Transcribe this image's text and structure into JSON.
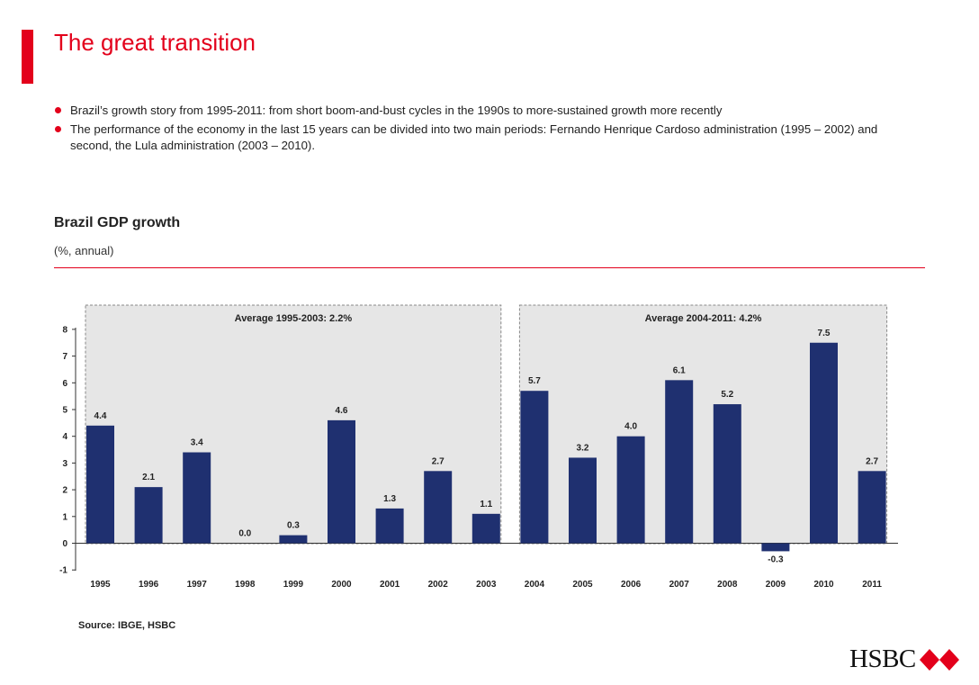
{
  "slide": {
    "title": "The great transition",
    "bullets": [
      "Brazil’s growth story from 1995-2011: from short boom-and-bust cycles in the 1990s to more-sustained growth more recently",
      "The performance of the economy in the last 15 years can be divided into two main periods: Fernando Henrique Cardoso administration (1995 – 2002) and second, the Lula administration (2003 – 2010)."
    ],
    "source": "Source: IBGE, HSBC",
    "logo_text": "HSBC"
  },
  "colors": {
    "accent": "#e3001b",
    "bar": "#1f3070",
    "panel": "#e6e6e6",
    "panel_border": "#888888"
  },
  "chart_data": {
    "type": "bar",
    "title": "Brazil GDP growth",
    "subtitle": "(%, annual)",
    "categories": [
      "1995",
      "1996",
      "1997",
      "1998",
      "1999",
      "2000",
      "2001",
      "2002",
      "2003",
      "2004",
      "2005",
      "2006",
      "2007",
      "2008",
      "2009",
      "2010",
      "2011"
    ],
    "values": [
      4.4,
      2.1,
      3.4,
      0.0,
      0.3,
      4.6,
      1.3,
      2.7,
      1.1,
      5.7,
      3.2,
      4.0,
      6.1,
      5.2,
      -0.3,
      7.5,
      2.7
    ],
    "value_labels": [
      "4.4",
      "2.1",
      "3.4",
      "0.0",
      "0.3",
      "4.6",
      "1.3",
      "2.7",
      "1.1",
      "5.7",
      "3.2",
      "4.0",
      "6.1",
      "5.2",
      "-0.3",
      "7.5",
      "2.7"
    ],
    "ylim": [
      -1,
      8
    ],
    "yticks": [
      "-1",
      "0",
      "1",
      "2",
      "3",
      "4",
      "5",
      "6",
      "7",
      "8"
    ],
    "xlabel": "",
    "ylabel": "",
    "grid": false,
    "annotations": [
      {
        "text": "Average 1995-2003: 2.2%",
        "from": "1995",
        "to": "2003"
      },
      {
        "text": "Average 2004-2011: 4.2%",
        "from": "2004",
        "to": "2011"
      }
    ]
  }
}
